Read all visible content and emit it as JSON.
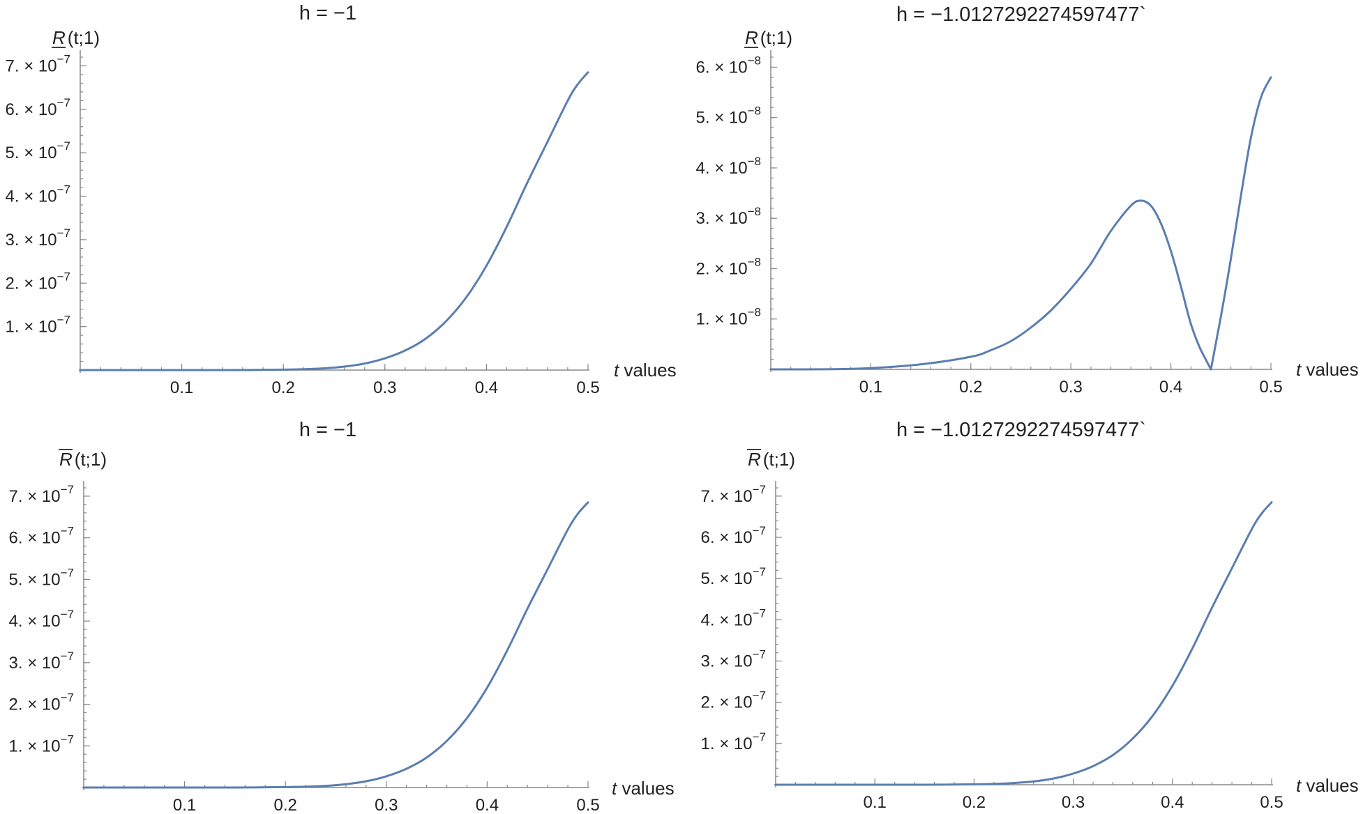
{
  "colors": {
    "curve": "#5a7eb0",
    "axis": "#888888",
    "text": "#222222"
  },
  "chart_data": [
    {
      "type": "line",
      "title": "h = −1",
      "ylabel": "R̲(t;1)",
      "ylabel_symbol": "R",
      "ylabel_rest": "(t;1)",
      "ylabel_bar": "under",
      "xlabel_var": "t",
      "xlabel_rest": " values",
      "xlim": [
        0,
        0.5
      ],
      "ylim": [
        0,
        7.2e-07
      ],
      "x_ticks": [
        0.1,
        0.2,
        0.3,
        0.4,
        0.5
      ],
      "x_tick_labels": [
        "0.1",
        "0.2",
        "0.3",
        "0.4",
        "0.5"
      ],
      "y_ticks": [
        1e-07,
        2e-07,
        3e-07,
        4e-07,
        5e-07,
        6e-07,
        7e-07
      ],
      "y_tick_mant": [
        "1.",
        "2.",
        "3.",
        "4.",
        "5.",
        "6.",
        "7."
      ],
      "y_tick_exp": "−7",
      "series": [
        {
          "name": "R(t;1)",
          "x": [
            0,
            0.05,
            0.1,
            0.15,
            0.2,
            0.22,
            0.24,
            0.26,
            0.28,
            0.3,
            0.32,
            0.34,
            0.36,
            0.38,
            0.4,
            0.42,
            0.44,
            0.46,
            0.48,
            0.49,
            0.5
          ],
          "y": [
            0,
            0,
            0,
            0,
            1e-09,
            2e-09,
            4e-09,
            8e-09,
            1.5e-08,
            2.7e-08,
            4.5e-08,
            7.2e-08,
            1.12e-07,
            1.67e-07,
            2.4e-07,
            3.3e-07,
            4.3e-07,
            5.25e-07,
            6.2e-07,
            6.58e-07,
            6.85e-07
          ]
        }
      ]
    },
    {
      "type": "line",
      "title": "h = −1.0127292274597477`",
      "ylabel": "R̲(t;1)",
      "ylabel_symbol": "R",
      "ylabel_rest": "(t;1)",
      "ylabel_bar": "under",
      "xlabel_var": "t",
      "xlabel_rest": " values",
      "xlim": [
        0,
        0.5
      ],
      "ylim": [
        0,
        6.2e-08
      ],
      "x_ticks": [
        0.1,
        0.2,
        0.3,
        0.4,
        0.5
      ],
      "x_tick_labels": [
        "0.1",
        "0.2",
        "0.3",
        "0.4",
        "0.5"
      ],
      "y_ticks": [
        1e-08,
        2e-08,
        3e-08,
        4e-08,
        5e-08,
        6e-08
      ],
      "y_tick_mant": [
        "1.",
        "2.",
        "3.",
        "4.",
        "5.",
        "6."
      ],
      "y_tick_exp": "−8",
      "series": [
        {
          "name": "R(t;1)",
          "x": [
            0,
            0.05,
            0.1,
            0.15,
            0.2,
            0.22,
            0.24,
            0.26,
            0.28,
            0.3,
            0.32,
            0.34,
            0.36,
            0.37,
            0.38,
            0.39,
            0.4,
            0.41,
            0.42,
            0.43,
            0.44,
            0.45,
            0.46,
            0.47,
            0.48,
            0.49,
            0.5
          ],
          "y": [
            0,
            2e-11,
            2.5e-10,
            1e-09,
            2.5e-09,
            3.8e-09,
            5.6e-09,
            8.3e-09,
            1.17e-08,
            1.6e-08,
            2.1e-08,
            2.75e-08,
            3.25e-08,
            3.35e-08,
            3.25e-08,
            2.9e-08,
            2.35e-08,
            1.65e-08,
            9e-09,
            3.8e-09,
            0,
            1.05e-08,
            2.2e-08,
            3.45e-08,
            4.6e-08,
            5.4e-08,
            5.8e-08
          ]
        }
      ]
    },
    {
      "type": "line",
      "title": "h = −1",
      "ylabel": "R̅(t;1)",
      "ylabel_symbol": "R",
      "ylabel_rest": "(t;1)",
      "ylabel_bar": "over",
      "xlabel_var": "t",
      "xlabel_rest": " values",
      "xlim": [
        0,
        0.5
      ],
      "ylim": [
        0,
        7.2e-07
      ],
      "x_ticks": [
        0.1,
        0.2,
        0.3,
        0.4,
        0.5
      ],
      "x_tick_labels": [
        "0.1",
        "0.2",
        "0.3",
        "0.4",
        "0.5"
      ],
      "y_ticks": [
        1e-07,
        2e-07,
        3e-07,
        4e-07,
        5e-07,
        6e-07,
        7e-07
      ],
      "y_tick_mant": [
        "1.",
        "2.",
        "3.",
        "4.",
        "5.",
        "6.",
        "7."
      ],
      "y_tick_exp": "−7",
      "series": [
        {
          "name": "R(t;1)",
          "x": [
            0,
            0.05,
            0.1,
            0.15,
            0.2,
            0.22,
            0.24,
            0.26,
            0.28,
            0.3,
            0.32,
            0.34,
            0.36,
            0.38,
            0.4,
            0.42,
            0.44,
            0.46,
            0.48,
            0.49,
            0.5
          ],
          "y": [
            0,
            0,
            0,
            0,
            1e-09,
            2e-09,
            4e-09,
            8e-09,
            1.5e-08,
            2.7e-08,
            4.5e-08,
            7.2e-08,
            1.12e-07,
            1.67e-07,
            2.4e-07,
            3.3e-07,
            4.3e-07,
            5.25e-07,
            6.2e-07,
            6.58e-07,
            6.85e-07
          ]
        }
      ]
    },
    {
      "type": "line",
      "title": "h = −1.0127292274597477`",
      "ylabel": "R̅(t;1)",
      "ylabel_symbol": "R",
      "ylabel_rest": "(t;1)",
      "ylabel_bar": "over",
      "xlabel_var": "t",
      "xlabel_rest": " values",
      "xlim": [
        0,
        0.5
      ],
      "ylim": [
        0,
        7.2e-07
      ],
      "x_ticks": [
        0.1,
        0.2,
        0.3,
        0.4,
        0.5
      ],
      "x_tick_labels": [
        "0.1",
        "0.2",
        "0.3",
        "0.4",
        "0.5"
      ],
      "y_ticks": [
        1e-07,
        2e-07,
        3e-07,
        4e-07,
        5e-07,
        6e-07,
        7e-07
      ],
      "y_tick_mant": [
        "1.",
        "2.",
        "3.",
        "4.",
        "5.",
        "6.",
        "7."
      ],
      "y_tick_exp": "−7",
      "series": [
        {
          "name": "R(t;1)",
          "x": [
            0,
            0.05,
            0.1,
            0.15,
            0.2,
            0.22,
            0.24,
            0.26,
            0.28,
            0.3,
            0.32,
            0.34,
            0.36,
            0.38,
            0.4,
            0.42,
            0.44,
            0.46,
            0.48,
            0.49,
            0.5
          ],
          "y": [
            0,
            0,
            0,
            0,
            1e-09,
            2e-09,
            4e-09,
            8e-09,
            1.5e-08,
            2.7e-08,
            4.5e-08,
            7.2e-08,
            1.12e-07,
            1.67e-07,
            2.4e-07,
            3.3e-07,
            4.3e-07,
            5.25e-07,
            6.2e-07,
            6.58e-07,
            6.85e-07
          ]
        }
      ]
    }
  ]
}
